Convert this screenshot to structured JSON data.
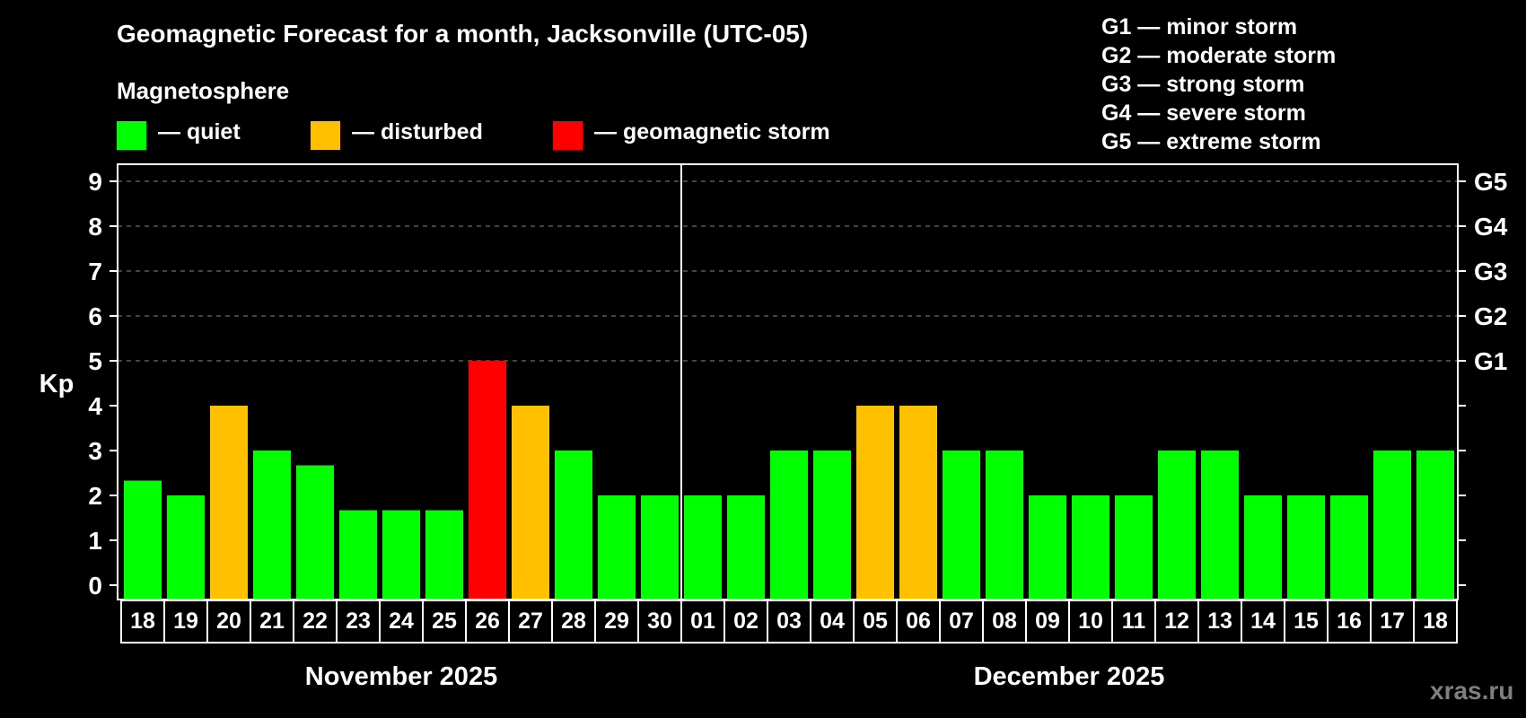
{
  "title": "Geomagnetic Forecast for a month, Jacksonville (UTC-05)",
  "legend": {
    "heading": "Magnetosphere",
    "items": [
      {
        "label": "— quiet",
        "color": "#00ff00"
      },
      {
        "label": "— disturbed",
        "color": "#ffc000"
      },
      {
        "label": "— geomagnetic storm",
        "color": "#ff0000"
      }
    ]
  },
  "storm_scale": [
    "G1 — minor storm",
    "G2 — moderate storm",
    "G3 — strong storm",
    "G4 — severe storm",
    "G5 — extreme storm"
  ],
  "watermark": "xras.ru",
  "chart_data": {
    "type": "bar",
    "title": "Geomagnetic Forecast for a month, Jacksonville (UTC-05)",
    "ylabel": "Kp",
    "ylim": [
      0,
      9
    ],
    "yticks": [
      "0",
      "1",
      "2",
      "3",
      "4",
      "5",
      "6",
      "7",
      "8",
      "9"
    ],
    "right_ticks": [
      {
        "value": 5,
        "label": "G1"
      },
      {
        "value": 6,
        "label": "G2"
      },
      {
        "value": 7,
        "label": "G3"
      },
      {
        "value": 8,
        "label": "G4"
      },
      {
        "value": 9,
        "label": "G5"
      }
    ],
    "grid": "dashed horizontal at 5-9",
    "months": [
      {
        "label": "November 2025",
        "days": 13
      },
      {
        "label": "December 2025",
        "days": 18
      }
    ],
    "categories": [
      "18",
      "19",
      "20",
      "21",
      "22",
      "23",
      "24",
      "25",
      "26",
      "27",
      "28",
      "29",
      "30",
      "01",
      "02",
      "03",
      "04",
      "05",
      "06",
      "07",
      "08",
      "09",
      "10",
      "11",
      "12",
      "13",
      "14",
      "15",
      "16",
      "17",
      "18"
    ],
    "values": [
      2.33,
      2,
      4,
      3,
      2.67,
      1.67,
      1.67,
      1.67,
      5,
      4,
      3,
      2,
      2,
      2,
      2,
      3,
      3,
      4,
      4,
      3,
      3,
      2,
      2,
      2,
      3,
      3,
      2,
      2,
      2,
      3,
      3
    ],
    "status": [
      "quiet",
      "quiet",
      "disturbed",
      "quiet",
      "quiet",
      "quiet",
      "quiet",
      "quiet",
      "storm",
      "disturbed",
      "quiet",
      "quiet",
      "quiet",
      "quiet",
      "quiet",
      "quiet",
      "quiet",
      "disturbed",
      "disturbed",
      "quiet",
      "quiet",
      "quiet",
      "quiet",
      "quiet",
      "quiet",
      "quiet",
      "quiet",
      "quiet",
      "quiet",
      "quiet",
      "quiet"
    ],
    "colors": {
      "quiet": "#00ff00",
      "disturbed": "#ffc000",
      "storm": "#ff0000"
    }
  }
}
